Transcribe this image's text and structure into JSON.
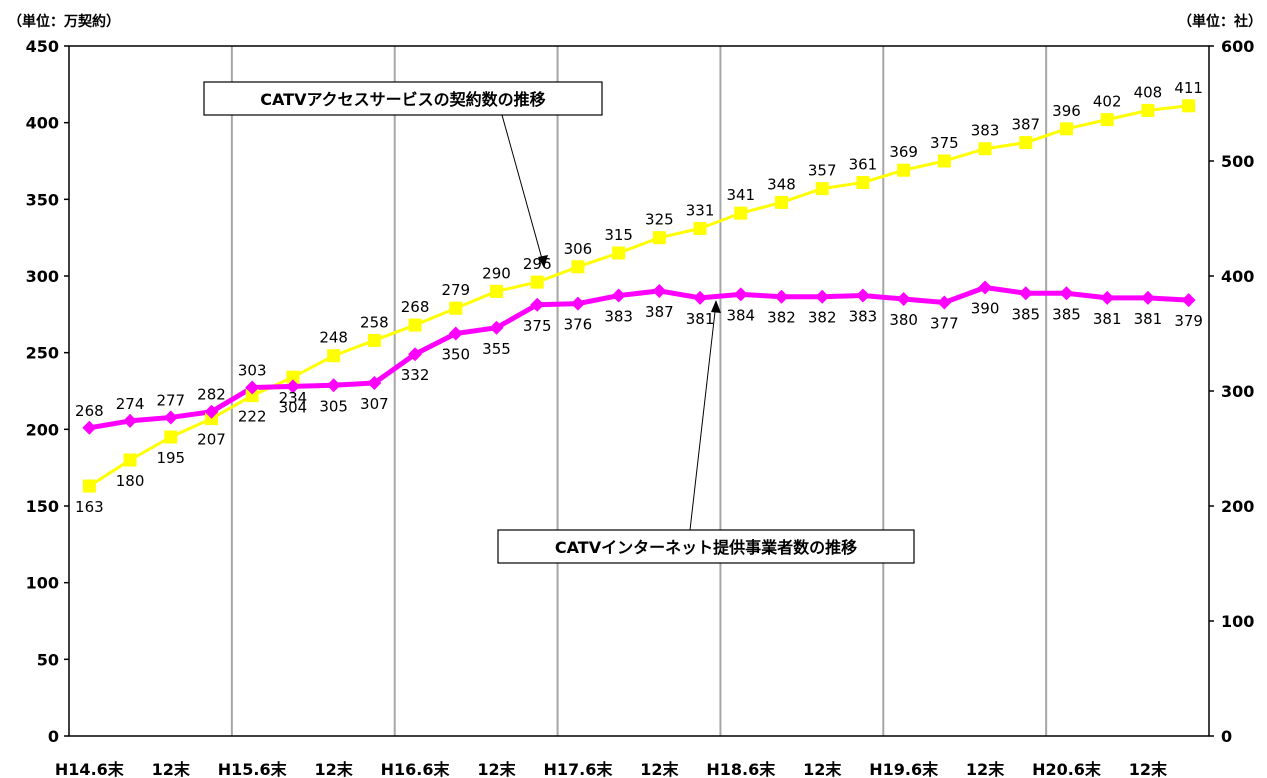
{
  "chart_data": {
    "type": "line",
    "left_unit": "（単位：万契約）",
    "right_unit": "（単位：社）",
    "left_ylim": [
      0,
      450
    ],
    "left_yticks": [
      0,
      50,
      100,
      150,
      200,
      250,
      300,
      350,
      400,
      450
    ],
    "right_ylim": [
      0,
      600
    ],
    "right_yticks": [
      0,
      100,
      200,
      300,
      400,
      500,
      600
    ],
    "x_tick_labels": [
      "H14.6末",
      "12末",
      "H15.6末",
      "12末",
      "H16.6末",
      "12末",
      "H17.6末",
      "12末",
      "H18.6末",
      "12末",
      "H19.6末",
      "12末",
      "H20.6末",
      "12末"
    ],
    "grid": "vertical lines at each June-end category",
    "series": [
      {
        "name": "CATVアクセスサービスの契約数の推移",
        "axis": "left",
        "color": "#ffff00",
        "marker": "square",
        "values": [
          163,
          180,
          195,
          207,
          222,
          234,
          248,
          258,
          268,
          279,
          290,
          296,
          306,
          315,
          325,
          331,
          341,
          348,
          357,
          361,
          369,
          375,
          383,
          387,
          396,
          402,
          408,
          411
        ]
      },
      {
        "name": "CATVインターネット提供事業者数の推移",
        "axis": "right",
        "color": "#ff00ff",
        "marker": "diamond",
        "values": [
          268,
          274,
          277,
          282,
          303,
          304,
          305,
          307,
          332,
          350,
          355,
          375,
          376,
          383,
          387,
          381,
          384,
          382,
          382,
          383,
          380,
          377,
          390,
          385,
          385,
          381,
          381,
          379
        ]
      }
    ]
  }
}
